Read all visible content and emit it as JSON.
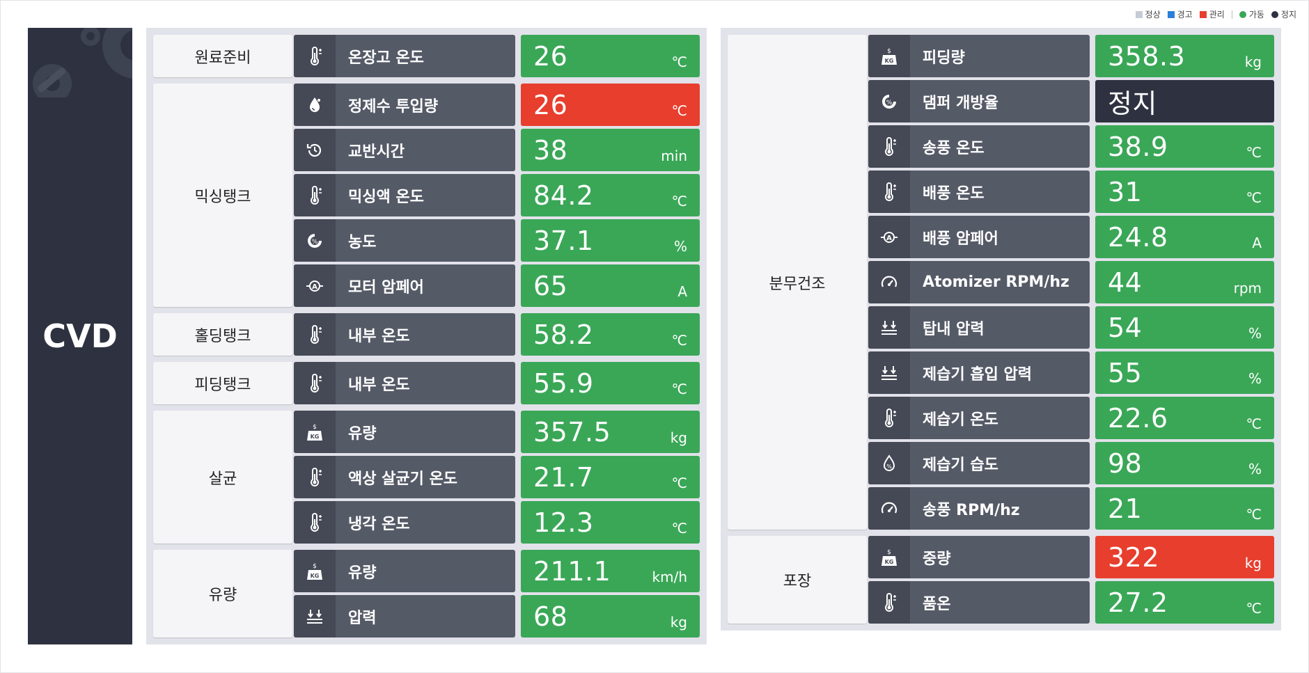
{
  "colors": {
    "normal": "#3aa757",
    "alert": "#e73e2d",
    "stop": "#2e3240",
    "label_bg": "#555a67"
  },
  "legend": [
    {
      "label": "정상",
      "color": "#c6cbd8",
      "shape": "square"
    },
    {
      "label": "경고",
      "color": "#2a7fd9",
      "shape": "square"
    },
    {
      "label": "관리",
      "color": "#e73e2d",
      "shape": "square"
    },
    {
      "label": "가동",
      "color": "#3aa757",
      "shape": "dot"
    },
    {
      "label": "정지",
      "color": "#2e3240",
      "shape": "dot"
    }
  ],
  "brand": {
    "title": "CVD",
    "icon": "gears-wrench-icon"
  },
  "left_panel": {
    "groups": [
      {
        "name": "원료준비",
        "rows": [
          {
            "icon": "thermometer-icon",
            "label": "온장고 온도",
            "value": "26",
            "unit": "℃",
            "status": "normal"
          }
        ]
      },
      {
        "name": "믹싱탱크",
        "rows": [
          {
            "icon": "water-drop-icon",
            "label": "정제수 투입량",
            "value": "26",
            "unit": "℃",
            "status": "alert"
          },
          {
            "icon": "history-icon",
            "label": "교반시간",
            "value": "38",
            "unit": "min",
            "status": "normal"
          },
          {
            "icon": "thermometer-icon",
            "label": "믹싱액 온도",
            "value": "84.2",
            "unit": "℃",
            "status": "normal"
          },
          {
            "icon": "percent-gauge-icon",
            "label": "농도",
            "value": "37.1",
            "unit": "%",
            "status": "normal"
          },
          {
            "icon": "ampere-icon",
            "label": "모터 암페어",
            "value": "65",
            "unit": "A",
            "status": "normal"
          }
        ]
      },
      {
        "name": "홀딩탱크",
        "rows": [
          {
            "icon": "thermometer-icon",
            "label": "내부 온도",
            "value": "58.2",
            "unit": "℃",
            "status": "normal"
          }
        ]
      },
      {
        "name": "피딩탱크",
        "rows": [
          {
            "icon": "thermometer-icon",
            "label": "내부 온도",
            "value": "55.9",
            "unit": "℃",
            "status": "normal"
          }
        ]
      },
      {
        "name": "살균",
        "rows": [
          {
            "icon": "weight-kg-icon",
            "label": "유량",
            "value": "357.5",
            "unit": "kg",
            "status": "normal"
          },
          {
            "icon": "thermometer-icon",
            "label": "액상 살균기 온도",
            "value": "21.7",
            "unit": "℃",
            "status": "normal"
          },
          {
            "icon": "thermometer-icon",
            "label": "냉각 온도",
            "value": "12.3",
            "unit": "℃",
            "status": "normal"
          }
        ]
      },
      {
        "name": "유량",
        "rows": [
          {
            "icon": "weight-kg-icon",
            "label": "유량",
            "value": "211.1",
            "unit": "km/h",
            "status": "normal"
          },
          {
            "icon": "pressure-icon",
            "label": "압력",
            "value": "68",
            "unit": "kg",
            "status": "normal"
          }
        ]
      }
    ]
  },
  "right_panel": {
    "groups": [
      {
        "name": "분무건조",
        "rows": [
          {
            "icon": "weight-kg-icon",
            "label": "피딩량",
            "value": "358.3",
            "unit": "kg",
            "status": "normal"
          },
          {
            "icon": "percent-gauge-icon",
            "label": "댐퍼 개방율",
            "value": "정지",
            "unit": "",
            "status": "stop"
          },
          {
            "icon": "thermometer-icon",
            "label": "송풍 온도",
            "value": "38.9",
            "unit": "℃",
            "status": "normal"
          },
          {
            "icon": "thermometer-icon",
            "label": "배풍 온도",
            "value": "31",
            "unit": "℃",
            "status": "normal"
          },
          {
            "icon": "ampere-icon",
            "label": "배풍 암페어",
            "value": "24.8",
            "unit": "A",
            "status": "normal"
          },
          {
            "icon": "speedometer-icon",
            "label": "Atomizer RPM/hz",
            "value": "44",
            "unit": "rpm",
            "status": "normal"
          },
          {
            "icon": "pressure-icon",
            "label": "탑내 압력",
            "value": "54",
            "unit": "%",
            "status": "normal"
          },
          {
            "icon": "pressure-icon",
            "label": "제습기 흡입 압력",
            "value": "55",
            "unit": "%",
            "status": "normal"
          },
          {
            "icon": "thermometer-icon",
            "label": "제습기 온도",
            "value": "22.6",
            "unit": "℃",
            "status": "normal"
          },
          {
            "icon": "humidity-icon",
            "label": "제습기 습도",
            "value": "98",
            "unit": "%",
            "status": "normal"
          },
          {
            "icon": "speedometer-icon",
            "label": "송풍 RPM/hz",
            "value": "21",
            "unit": "℃",
            "status": "normal"
          }
        ]
      },
      {
        "name": "포장",
        "rows": [
          {
            "icon": "weight-kg-icon",
            "label": "중량",
            "value": "322",
            "unit": "kg",
            "status": "alert"
          },
          {
            "icon": "thermometer-icon",
            "label": "품온",
            "value": "27.2",
            "unit": "℃",
            "status": "normal"
          }
        ]
      }
    ]
  }
}
